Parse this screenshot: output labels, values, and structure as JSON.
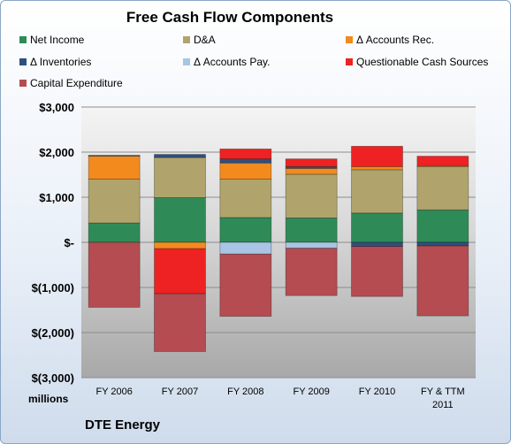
{
  "chart_data": {
    "type": "bar",
    "stacked": true,
    "title": "Free Cash Flow Components",
    "units_label": "millions",
    "company": "DTE Energy",
    "categories": [
      "FY 2006",
      "FY 2007",
      "FY 2008",
      "FY 2009",
      "FY 2010",
      "FY & TTM\n2011"
    ],
    "ylim": [
      -3000,
      3000
    ],
    "yticks": [
      3000,
      2000,
      1000,
      0,
      -1000,
      -2000,
      -3000
    ],
    "ytick_labels": [
      "$3,000",
      "$2,000",
      "$1,000",
      "$-",
      "$(1,000)",
      "$(2,000)",
      "$(3,000)"
    ],
    "grid": true,
    "legend_position": "top",
    "series": [
      {
        "name": "Net Income",
        "color": "#2e8b57",
        "values": [
          430,
          990,
          550,
          540,
          650,
          720
        ]
      },
      {
        "name": "D&A",
        "color": "#b0a46c",
        "values": [
          970,
          890,
          850,
          970,
          960,
          960
        ]
      },
      {
        "name": "Δ Accounts Rec.",
        "color": "#f28a1e",
        "values": [
          520,
          -140,
          360,
          130,
          70,
          20
        ]
      },
      {
        "name": "Δ Inventories",
        "color": "#2f4f7f",
        "values": [
          10,
          70,
          90,
          40,
          -90,
          -80
        ]
      },
      {
        "name": "Δ Accounts Pay.",
        "color": "#a9c4e4",
        "values": [
          0,
          0,
          -260,
          -130,
          0,
          0
        ]
      },
      {
        "name": "Questionable Cash Sources",
        "color": "#ee2222",
        "values": [
          0,
          -1000,
          220,
          170,
          450,
          210
        ]
      },
      {
        "name": "Capital Expenditure",
        "color": "#b44c52",
        "values": [
          -1440,
          -1280,
          -1380,
          -1050,
          -1110,
          -1550
        ]
      }
    ]
  }
}
